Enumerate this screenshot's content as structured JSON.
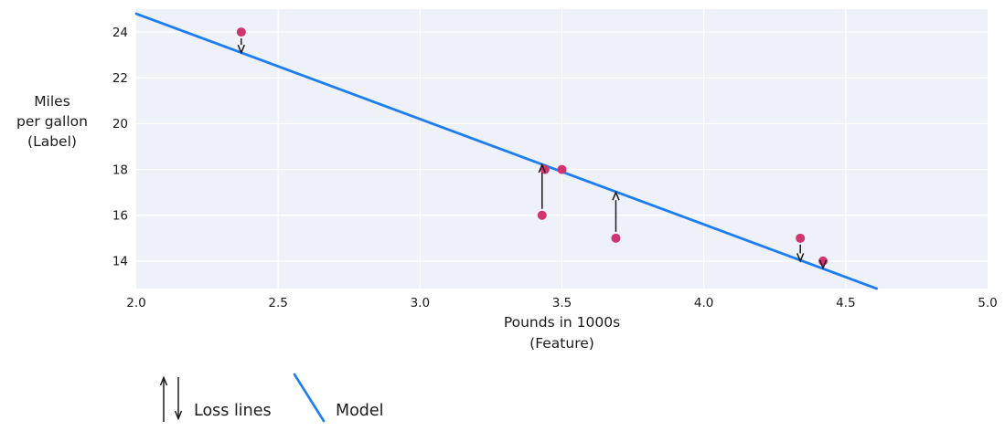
{
  "colors": {
    "figure_bg": "#ffffff",
    "plot_bg": "#eef1f7",
    "grid": "#ffffff",
    "model_line": "#1d7df2",
    "point": "#d1346f",
    "arrow": "#1a1a1a",
    "text": "#1a1a1a"
  },
  "chart_data": {
    "type": "scatter",
    "title": "",
    "xlabel": "Pounds in 1000s",
    "xlabel_sub": "(Feature)",
    "ylabel_lines": [
      "Miles",
      "per gallon",
      "(Label)"
    ],
    "xlim": [
      2.0,
      5.0
    ],
    "ylim": [
      12.8,
      25.0
    ],
    "grid": true,
    "xticks": [
      "2.0",
      "2.5",
      "3.0",
      "3.5",
      "4.0",
      "4.5",
      "5.0"
    ],
    "xtick_values": [
      2.0,
      2.5,
      3.0,
      3.5,
      4.0,
      4.5,
      5.0
    ],
    "yticks": [
      "14",
      "16",
      "18",
      "20",
      "22",
      "24"
    ],
    "ytick_values": [
      14,
      16,
      18,
      20,
      22,
      24
    ],
    "points": [
      {
        "x": 2.37,
        "y": 24
      },
      {
        "x": 3.44,
        "y": 18
      },
      {
        "x": 3.5,
        "y": 18
      },
      {
        "x": 3.43,
        "y": 16
      },
      {
        "x": 3.69,
        "y": 15
      },
      {
        "x": 4.34,
        "y": 15
      },
      {
        "x": 4.42,
        "y": 14
      }
    ],
    "model_line": {
      "slope": -4.6,
      "intercept": 34.0,
      "x_start": 2.0,
      "x_end": 4.609
    },
    "loss_lines": [
      {
        "x": 2.37,
        "point_y": 24,
        "line_y": 23.1,
        "direction": "down"
      },
      {
        "x": 3.43,
        "point_y": 16,
        "line_y": 18.2,
        "direction": "up"
      },
      {
        "x": 3.69,
        "point_y": 15,
        "line_y": 17.0,
        "direction": "up"
      },
      {
        "x": 4.34,
        "point_y": 15,
        "line_y": 14.0,
        "direction": "down"
      },
      {
        "x": 4.42,
        "point_y": 14,
        "line_y": 13.7,
        "direction": "down"
      }
    ],
    "legend": {
      "position": "bottom-left",
      "items": [
        {
          "label": "Loss lines",
          "symbol": "arrows"
        },
        {
          "label": "Model",
          "symbol": "line"
        }
      ]
    }
  }
}
